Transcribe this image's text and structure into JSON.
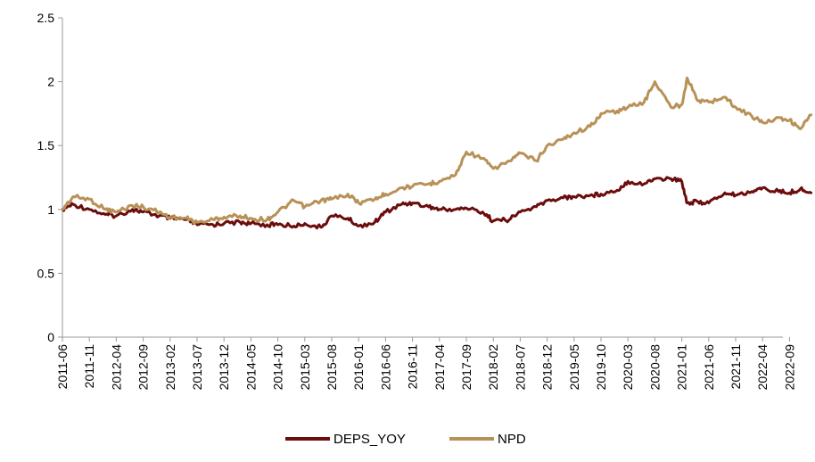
{
  "chart_data": {
    "type": "line",
    "title": "",
    "xlabel": "",
    "ylabel": "",
    "ylim": [
      0,
      2.5
    ],
    "y_ticks": [
      "0",
      "0.5",
      "1",
      "1.5",
      "2",
      "2.5"
    ],
    "x_ticks": [
      "2011-06",
      "2011-11",
      "2012-04",
      "2012-09",
      "2013-02",
      "2013-07",
      "2013-12",
      "2014-05",
      "2014-10",
      "2015-03",
      "2015-08",
      "2016-01",
      "2016-06",
      "2016-11",
      "2017-04",
      "2017-09",
      "2018-02",
      "2018-07",
      "2018-12",
      "2019-05",
      "2019-10",
      "2020-03",
      "2020-08",
      "2021-01",
      "2021-06",
      "2021-11",
      "2022-04",
      "2022-09"
    ],
    "grid": false,
    "legend_position": "bottom",
    "x": [
      "2011-06",
      "2011-08",
      "2011-11",
      "2012-02",
      "2012-04",
      "2012-07",
      "2012-09",
      "2012-12",
      "2013-02",
      "2013-05",
      "2013-07",
      "2013-10",
      "2013-12",
      "2014-03",
      "2014-05",
      "2014-08",
      "2014-10",
      "2015-01",
      "2015-03",
      "2015-06",
      "2015-08",
      "2015-11",
      "2016-01",
      "2016-04",
      "2016-06",
      "2016-09",
      "2016-11",
      "2017-02",
      "2017-04",
      "2017-07",
      "2017-09",
      "2017-12",
      "2018-02",
      "2018-05",
      "2018-07",
      "2018-10",
      "2018-12",
      "2019-03",
      "2019-05",
      "2019-08",
      "2019-10",
      "2020-01",
      "2020-03",
      "2020-06",
      "2020-08",
      "2020-11",
      "2021-01",
      "2021-02",
      "2021-04",
      "2021-06",
      "2021-09",
      "2021-11",
      "2022-02",
      "2022-04",
      "2022-07",
      "2022-09",
      "2022-11",
      "2023-01"
    ],
    "series": [
      {
        "name": "DEPS_YOY",
        "color": "#6b0d0d",
        "values": [
          1.0,
          1.04,
          1.0,
          0.96,
          0.95,
          1.0,
          0.98,
          0.95,
          0.93,
          0.92,
          0.88,
          0.88,
          0.89,
          0.9,
          0.89,
          0.88,
          0.88,
          0.87,
          0.89,
          0.86,
          0.95,
          0.93,
          0.87,
          0.9,
          0.98,
          1.04,
          1.05,
          1.02,
          1.0,
          1.0,
          1.01,
          0.98,
          0.91,
          0.92,
          0.98,
          1.02,
          1.07,
          1.09,
          1.1,
          1.11,
          1.12,
          1.15,
          1.22,
          1.2,
          1.24,
          1.24,
          1.22,
          1.05,
          1.06,
          1.05,
          1.13,
          1.11,
          1.14,
          1.17,
          1.14,
          1.13,
          1.16,
          1.13
        ]
      },
      {
        "name": "NPD",
        "color": "#b89157",
        "values": [
          1.0,
          1.1,
          1.08,
          1.0,
          0.98,
          1.03,
          1.02,
          0.98,
          0.94,
          0.93,
          0.9,
          0.92,
          0.94,
          0.95,
          0.93,
          0.92,
          0.98,
          1.07,
          1.02,
          1.07,
          1.08,
          1.12,
          1.05,
          1.08,
          1.12,
          1.17,
          1.18,
          1.2,
          1.22,
          1.27,
          1.45,
          1.4,
          1.32,
          1.38,
          1.44,
          1.38,
          1.5,
          1.55,
          1.6,
          1.65,
          1.75,
          1.77,
          1.8,
          1.84,
          2.0,
          1.8,
          1.82,
          2.03,
          1.85,
          1.84,
          1.88,
          1.8,
          1.73,
          1.68,
          1.72,
          1.7,
          1.63,
          1.74
        ]
      }
    ]
  }
}
